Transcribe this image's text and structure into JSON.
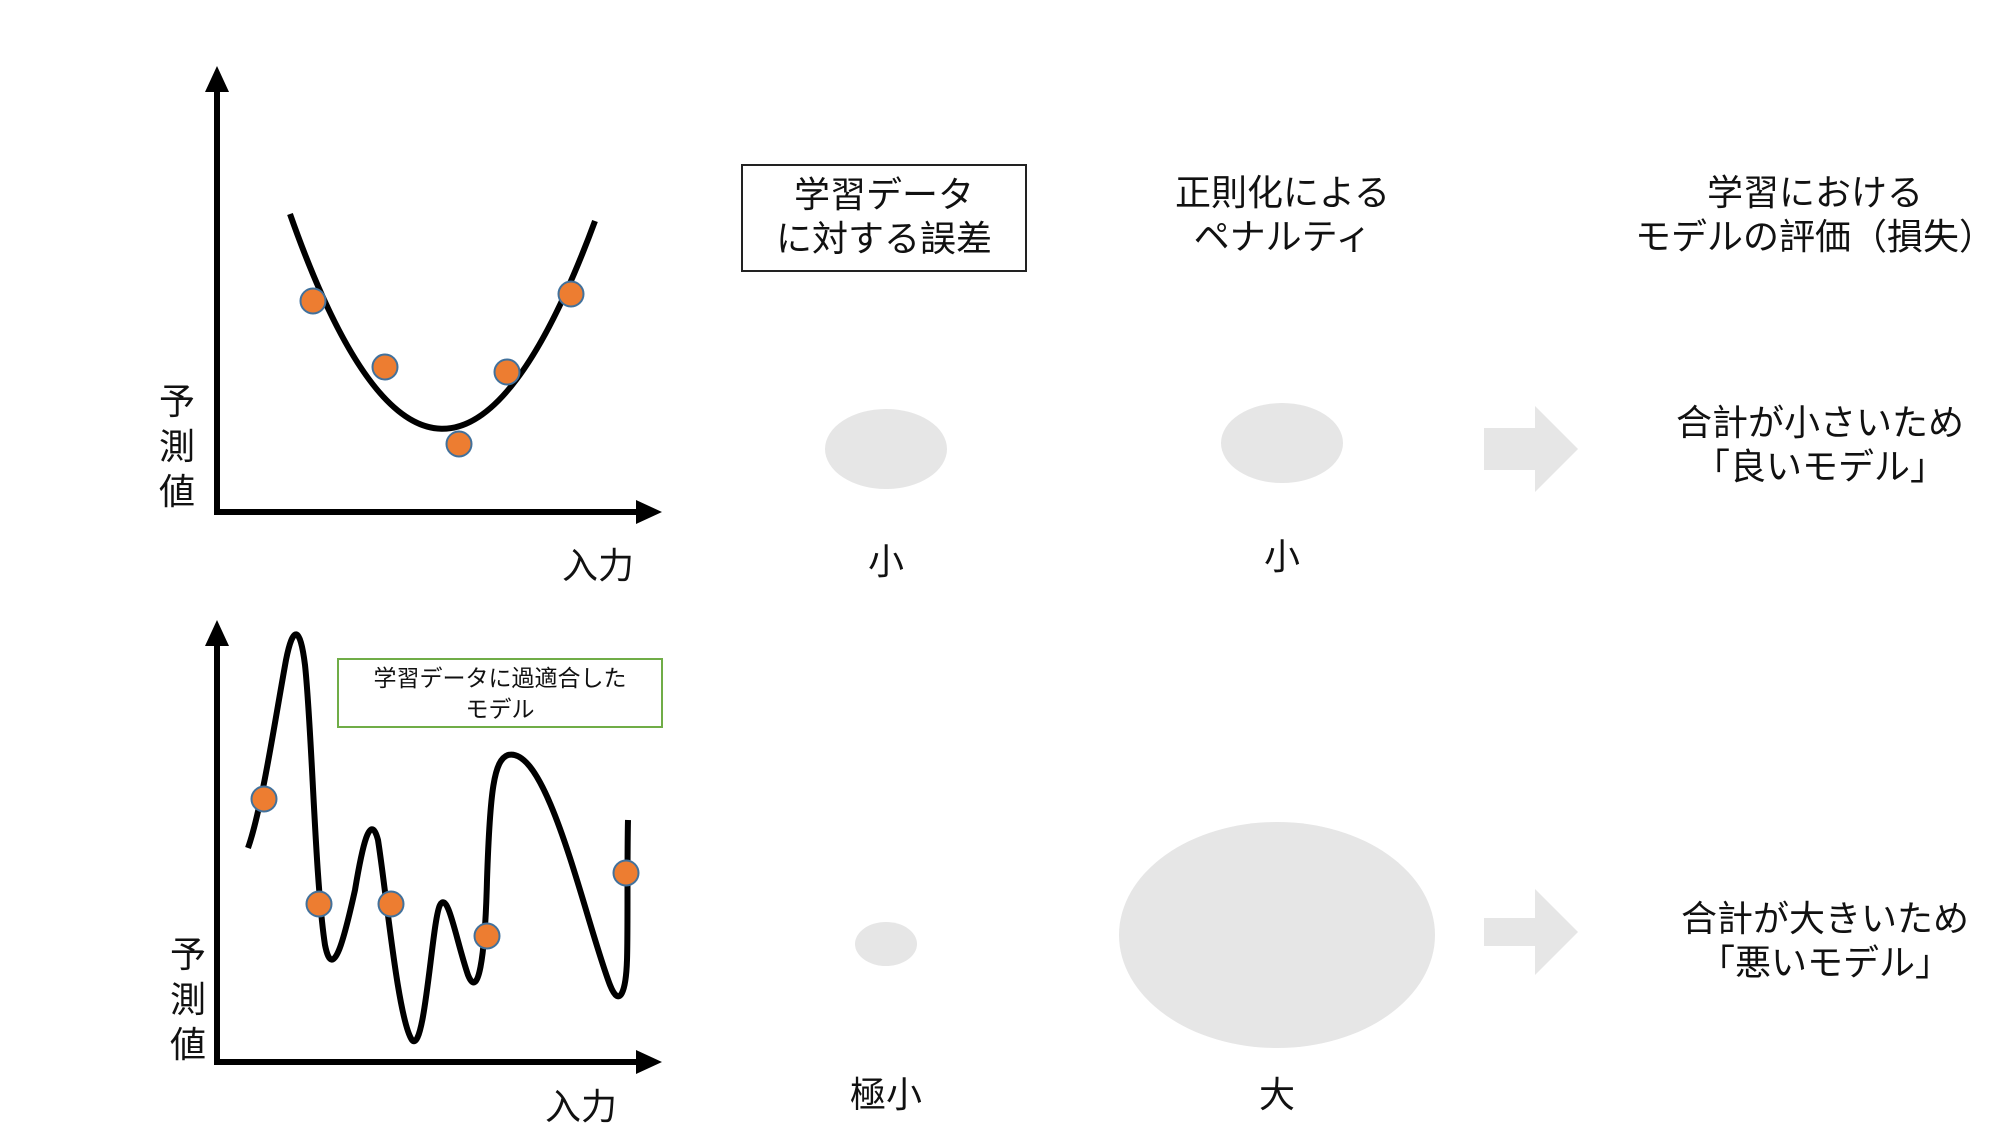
{
  "top": {
    "axis_x": "入力",
    "axis_y": "予\n測\n値",
    "error_size": "小",
    "penalty_size": "小",
    "result": [
      "合計が小さいため",
      "「良いモデル」"
    ]
  },
  "bottom": {
    "axis_x": "入力",
    "axis_y": "予\n測\n値",
    "callout": [
      "学習データに過適合した",
      "モデル"
    ],
    "error_size": "極小",
    "penalty_size": "大",
    "result": [
      "合計が大きいため",
      "「悪いモデル」"
    ]
  },
  "headers": {
    "error": [
      "学習データ",
      "に対する誤差"
    ],
    "penalty": [
      "正則化による",
      "ペナルティ"
    ],
    "loss": [
      "学習における",
      "モデルの評価（損失）"
    ]
  },
  "colors": {
    "point_fill": "#ed7d31",
    "point_stroke": "#41719c",
    "bubble": "#e6e6e6",
    "arrow": "#e6e6e6",
    "callout_border": "#70ad47"
  }
}
